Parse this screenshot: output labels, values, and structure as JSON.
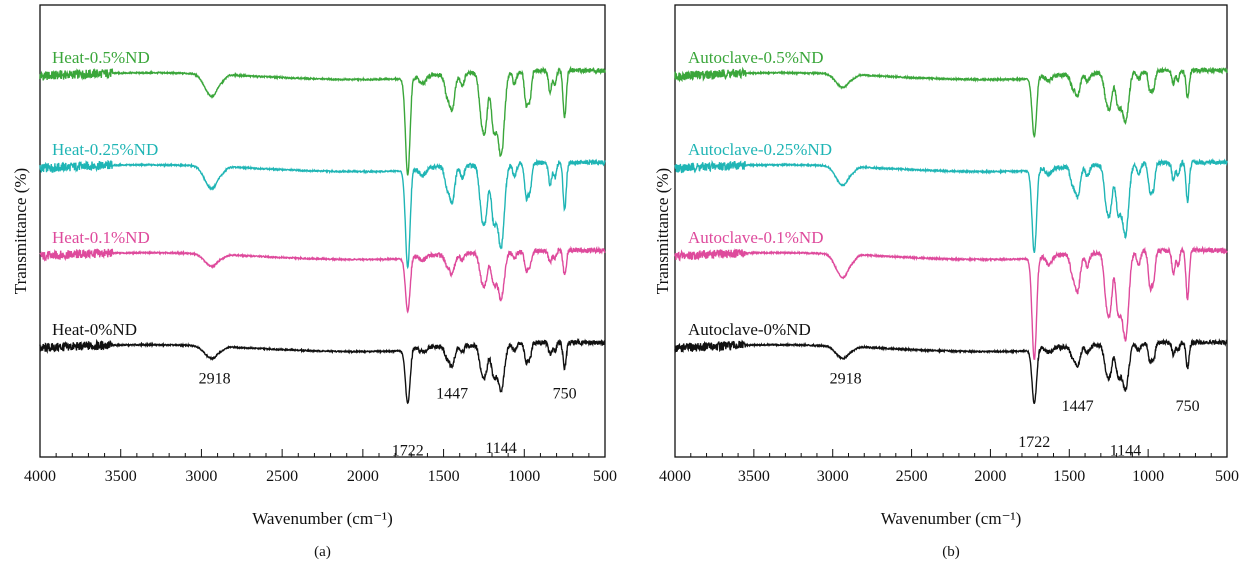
{
  "colors": {
    "green": "#3aa63a",
    "teal": "#1fb5b5",
    "pink": "#de4a9c",
    "black": "#111111"
  },
  "chart_data": [
    {
      "type": "line",
      "panel_label": "(a)",
      "xlabel": "Wavenumber (cm⁻¹)",
      "ylabel": "Transmittance (%)",
      "xlim": [
        4000,
        500
      ],
      "x_reversed": true,
      "xticks": [
        "4000",
        "3500",
        "3000",
        "2500",
        "2000",
        "1500",
        "1000",
        "500"
      ],
      "grid": false,
      "series": [
        {
          "name": "Heat-0.5%ND",
          "color": "green",
          "offset": 4.55,
          "peak_scale": 1.0
        },
        {
          "name": "Heat-0.25%ND",
          "color": "teal",
          "offset": 3.45,
          "peak_scale": 1.0
        },
        {
          "name": "Heat-0.1%ND",
          "color": "pink",
          "offset": 2.4,
          "peak_scale": 0.55
        },
        {
          "name": "Heat-0%ND",
          "color": "black",
          "offset": 1.3,
          "peak_scale": 0.55
        }
      ],
      "annotations": [
        {
          "text": "2918",
          "x": 2918,
          "y": 0.88
        },
        {
          "text": "1722",
          "x": 1722,
          "y": 0.02
        },
        {
          "text": "1447",
          "x": 1447,
          "y": 0.7
        },
        {
          "text": "1144",
          "x": 1144,
          "y": 0.05
        },
        {
          "text": "750",
          "x": 750,
          "y": 0.7
        }
      ]
    },
    {
      "type": "line",
      "panel_label": "(b)",
      "xlabel": "Wavenumber (cm⁻¹)",
      "ylabel": "Transmittance (%)",
      "xlim": [
        4000,
        500
      ],
      "x_reversed": true,
      "xticks": [
        "4000",
        "3500",
        "3000",
        "2500",
        "2000",
        "1500",
        "1000",
        "500"
      ],
      "grid": false,
      "series": [
        {
          "name": "Autoclave-0.5%ND",
          "color": "green",
          "offset": 4.55,
          "peak_scale": 0.6
        },
        {
          "name": "Autoclave-0.25%ND",
          "color": "teal",
          "offset": 3.45,
          "peak_scale": 0.85
        },
        {
          "name": "Autoclave-0.1%ND",
          "color": "pink",
          "offset": 2.4,
          "peak_scale": 1.05
        },
        {
          "name": "Autoclave-0%ND",
          "color": "black",
          "offset": 1.3,
          "peak_scale": 0.55
        }
      ],
      "annotations": [
        {
          "text": "2918",
          "x": 2918,
          "y": 0.88
        },
        {
          "text": "1722",
          "x": 1722,
          "y": 0.12
        },
        {
          "text": "1447",
          "x": 1447,
          "y": 0.55
        },
        {
          "text": "1144",
          "x": 1144,
          "y": 0.02
        },
        {
          "text": "750",
          "x": 750,
          "y": 0.55
        }
      ]
    }
  ]
}
